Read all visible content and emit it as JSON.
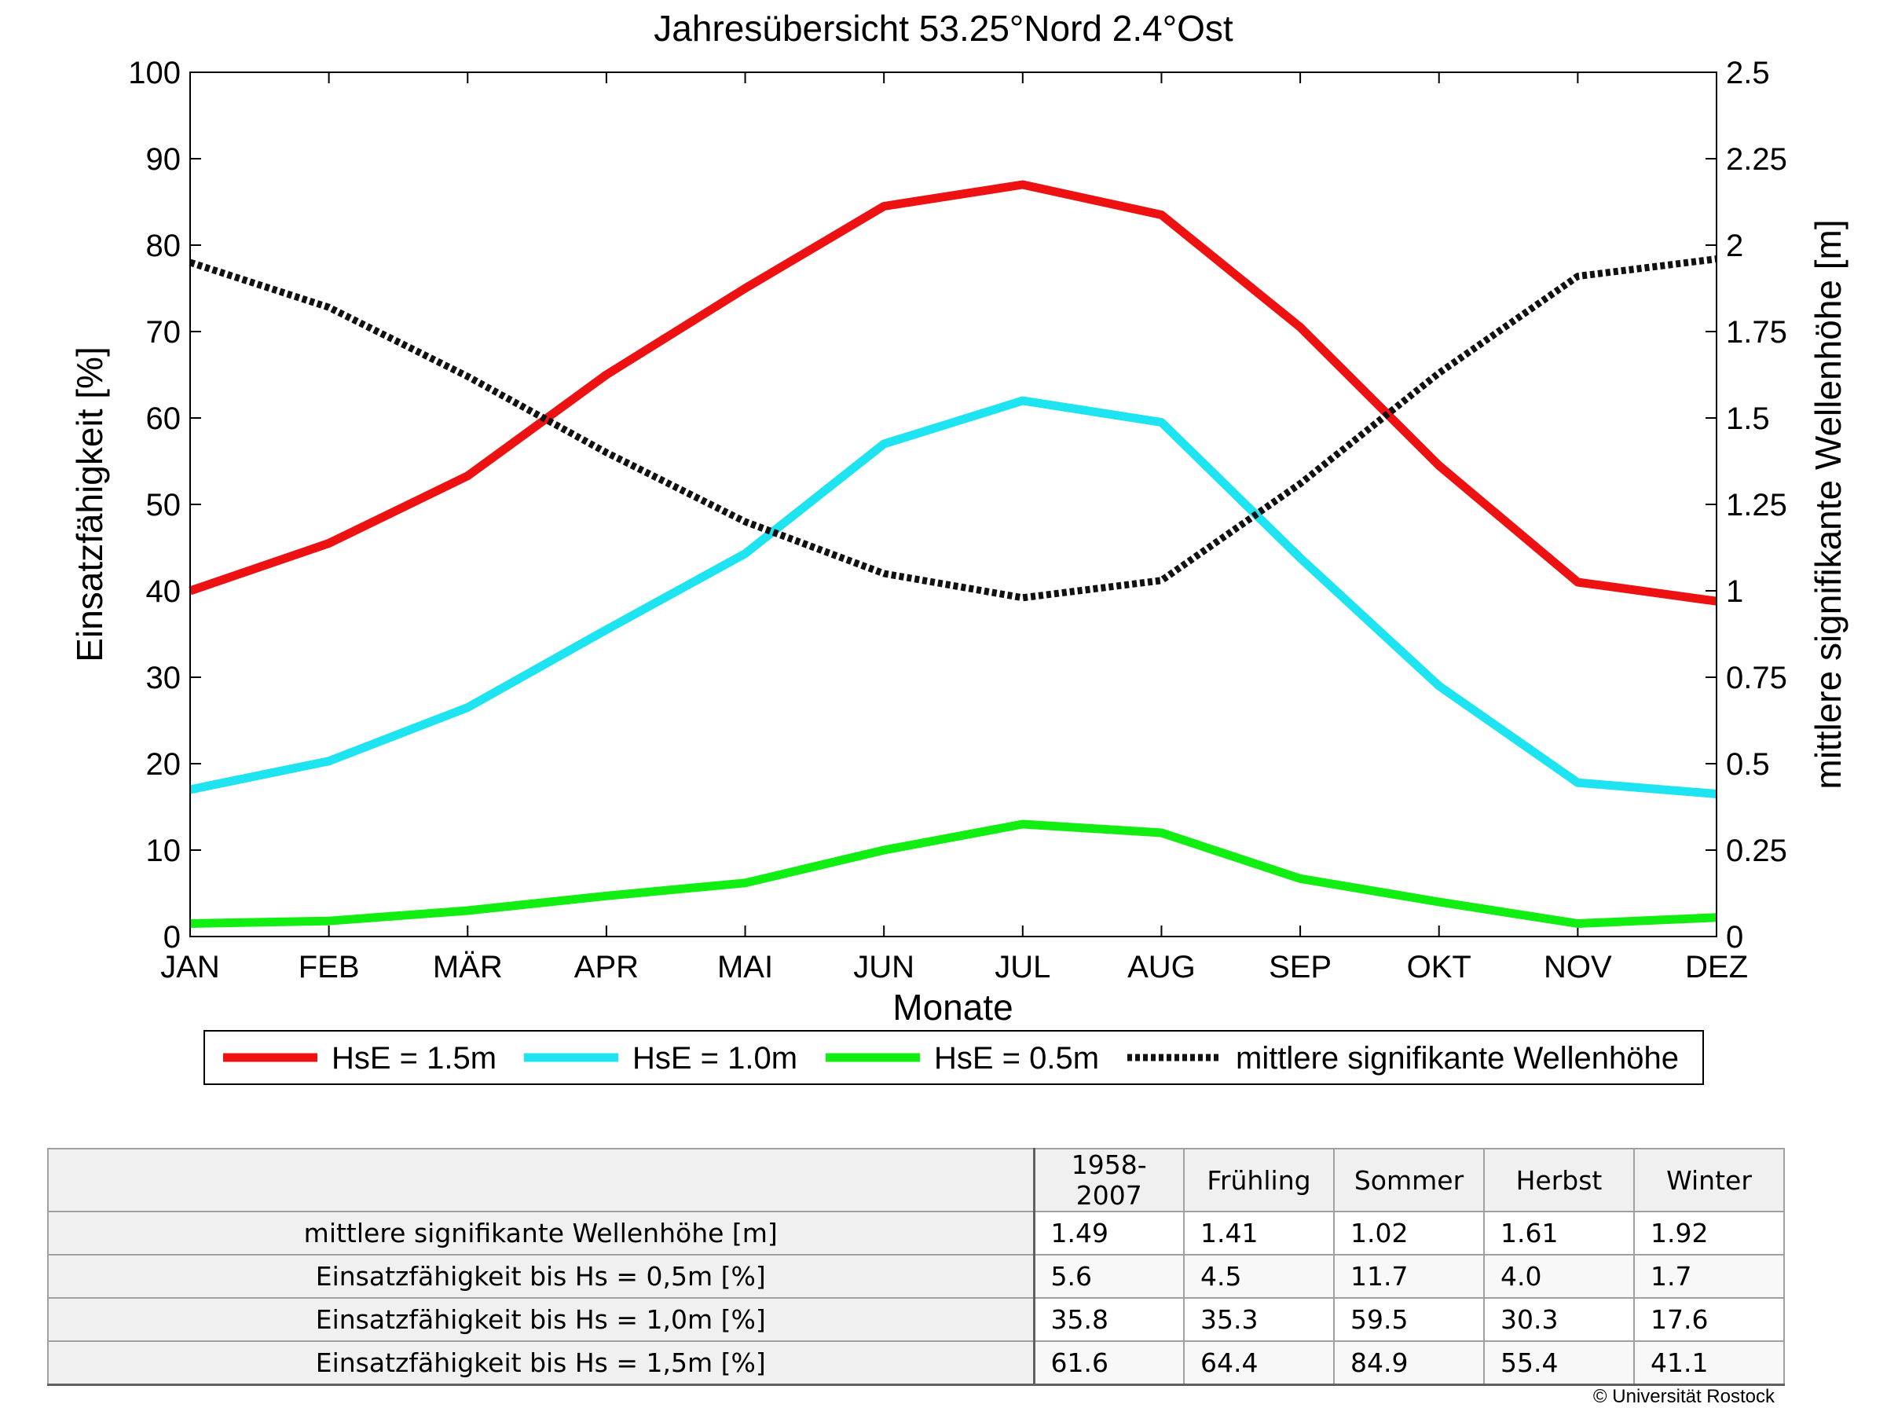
{
  "chart_data": {
    "type": "line",
    "title": "Jahresübersicht  53.25°Nord  2.4°Ost",
    "xlabel": "Monate",
    "ylabel": "Einsatzfähigkeit [%]",
    "y2label": "mittlere signifikante Wellenhöhe [m]",
    "categories": [
      "JAN",
      "FEB",
      "MÄR",
      "APR",
      "MAI",
      "JUN",
      "JUL",
      "AUG",
      "SEP",
      "OKT",
      "NOV",
      "DEZ"
    ],
    "ylim": [
      0,
      100
    ],
    "y2lim": [
      0,
      2.5
    ],
    "yticks": [
      "0",
      "10",
      "20",
      "30",
      "40",
      "50",
      "60",
      "70",
      "80",
      "90",
      "100"
    ],
    "y2ticks": [
      "0",
      "0.25",
      "0.5",
      "0.75",
      "1",
      "1.25",
      "1.5",
      "1.75",
      "2",
      "2.25",
      "2.5"
    ],
    "grid": false,
    "legend_position": "bottom",
    "series": [
      {
        "name": "HsE = 1.5m",
        "axis": "left",
        "color": "#ee1111",
        "style": "solid",
        "values": [
          40,
          45.5,
          53.3,
          65,
          75,
          84.5,
          87,
          83.5,
          70.5,
          54.5,
          41,
          38.8
        ]
      },
      {
        "name": "HsE = 1.0m",
        "axis": "left",
        "color": "#1de4f0",
        "style": "solid",
        "values": [
          17,
          20.3,
          26.5,
          35.5,
          44.3,
          57,
          62,
          59.5,
          43.8,
          29,
          17.8,
          16.5
        ]
      },
      {
        "name": "HsE = 0.5m",
        "axis": "left",
        "color": "#11ee11",
        "style": "solid",
        "values": [
          1.5,
          1.8,
          3,
          4.7,
          6.2,
          10,
          13,
          12,
          6.7,
          4,
          1.5,
          2.2
        ]
      },
      {
        "name": "mittlere signifikante Wellenhöhe",
        "axis": "right",
        "color": "#111111",
        "style": "dotted",
        "values": [
          1.95,
          1.82,
          1.62,
          1.4,
          1.2,
          1.05,
          0.98,
          1.03,
          1.31,
          1.63,
          1.91,
          1.96
        ]
      }
    ]
  },
  "table": {
    "columns": [
      "1958-2007",
      "Frühling",
      "Sommer",
      "Herbst",
      "Winter"
    ],
    "rows": [
      {
        "label": "mittlere signifikante Wellenhöhe [m]",
        "values": [
          "1.49",
          "1.41",
          "1.02",
          "1.61",
          "1.92"
        ]
      },
      {
        "label": "Einsatzfähigkeit bis Hs = 0,5m [%]",
        "values": [
          "5.6",
          "4.5",
          "11.7",
          "4.0",
          "1.7"
        ]
      },
      {
        "label": "Einsatzfähigkeit bis Hs = 1,0m [%]",
        "values": [
          "35.8",
          "35.3",
          "59.5",
          "30.3",
          "17.6"
        ]
      },
      {
        "label": "Einsatzfähigkeit bis Hs = 1,5m [%]",
        "values": [
          "61.6",
          "64.4",
          "84.9",
          "55.4",
          "41.1"
        ]
      }
    ]
  },
  "footer": {
    "copyright": "© Universität Rostock"
  }
}
